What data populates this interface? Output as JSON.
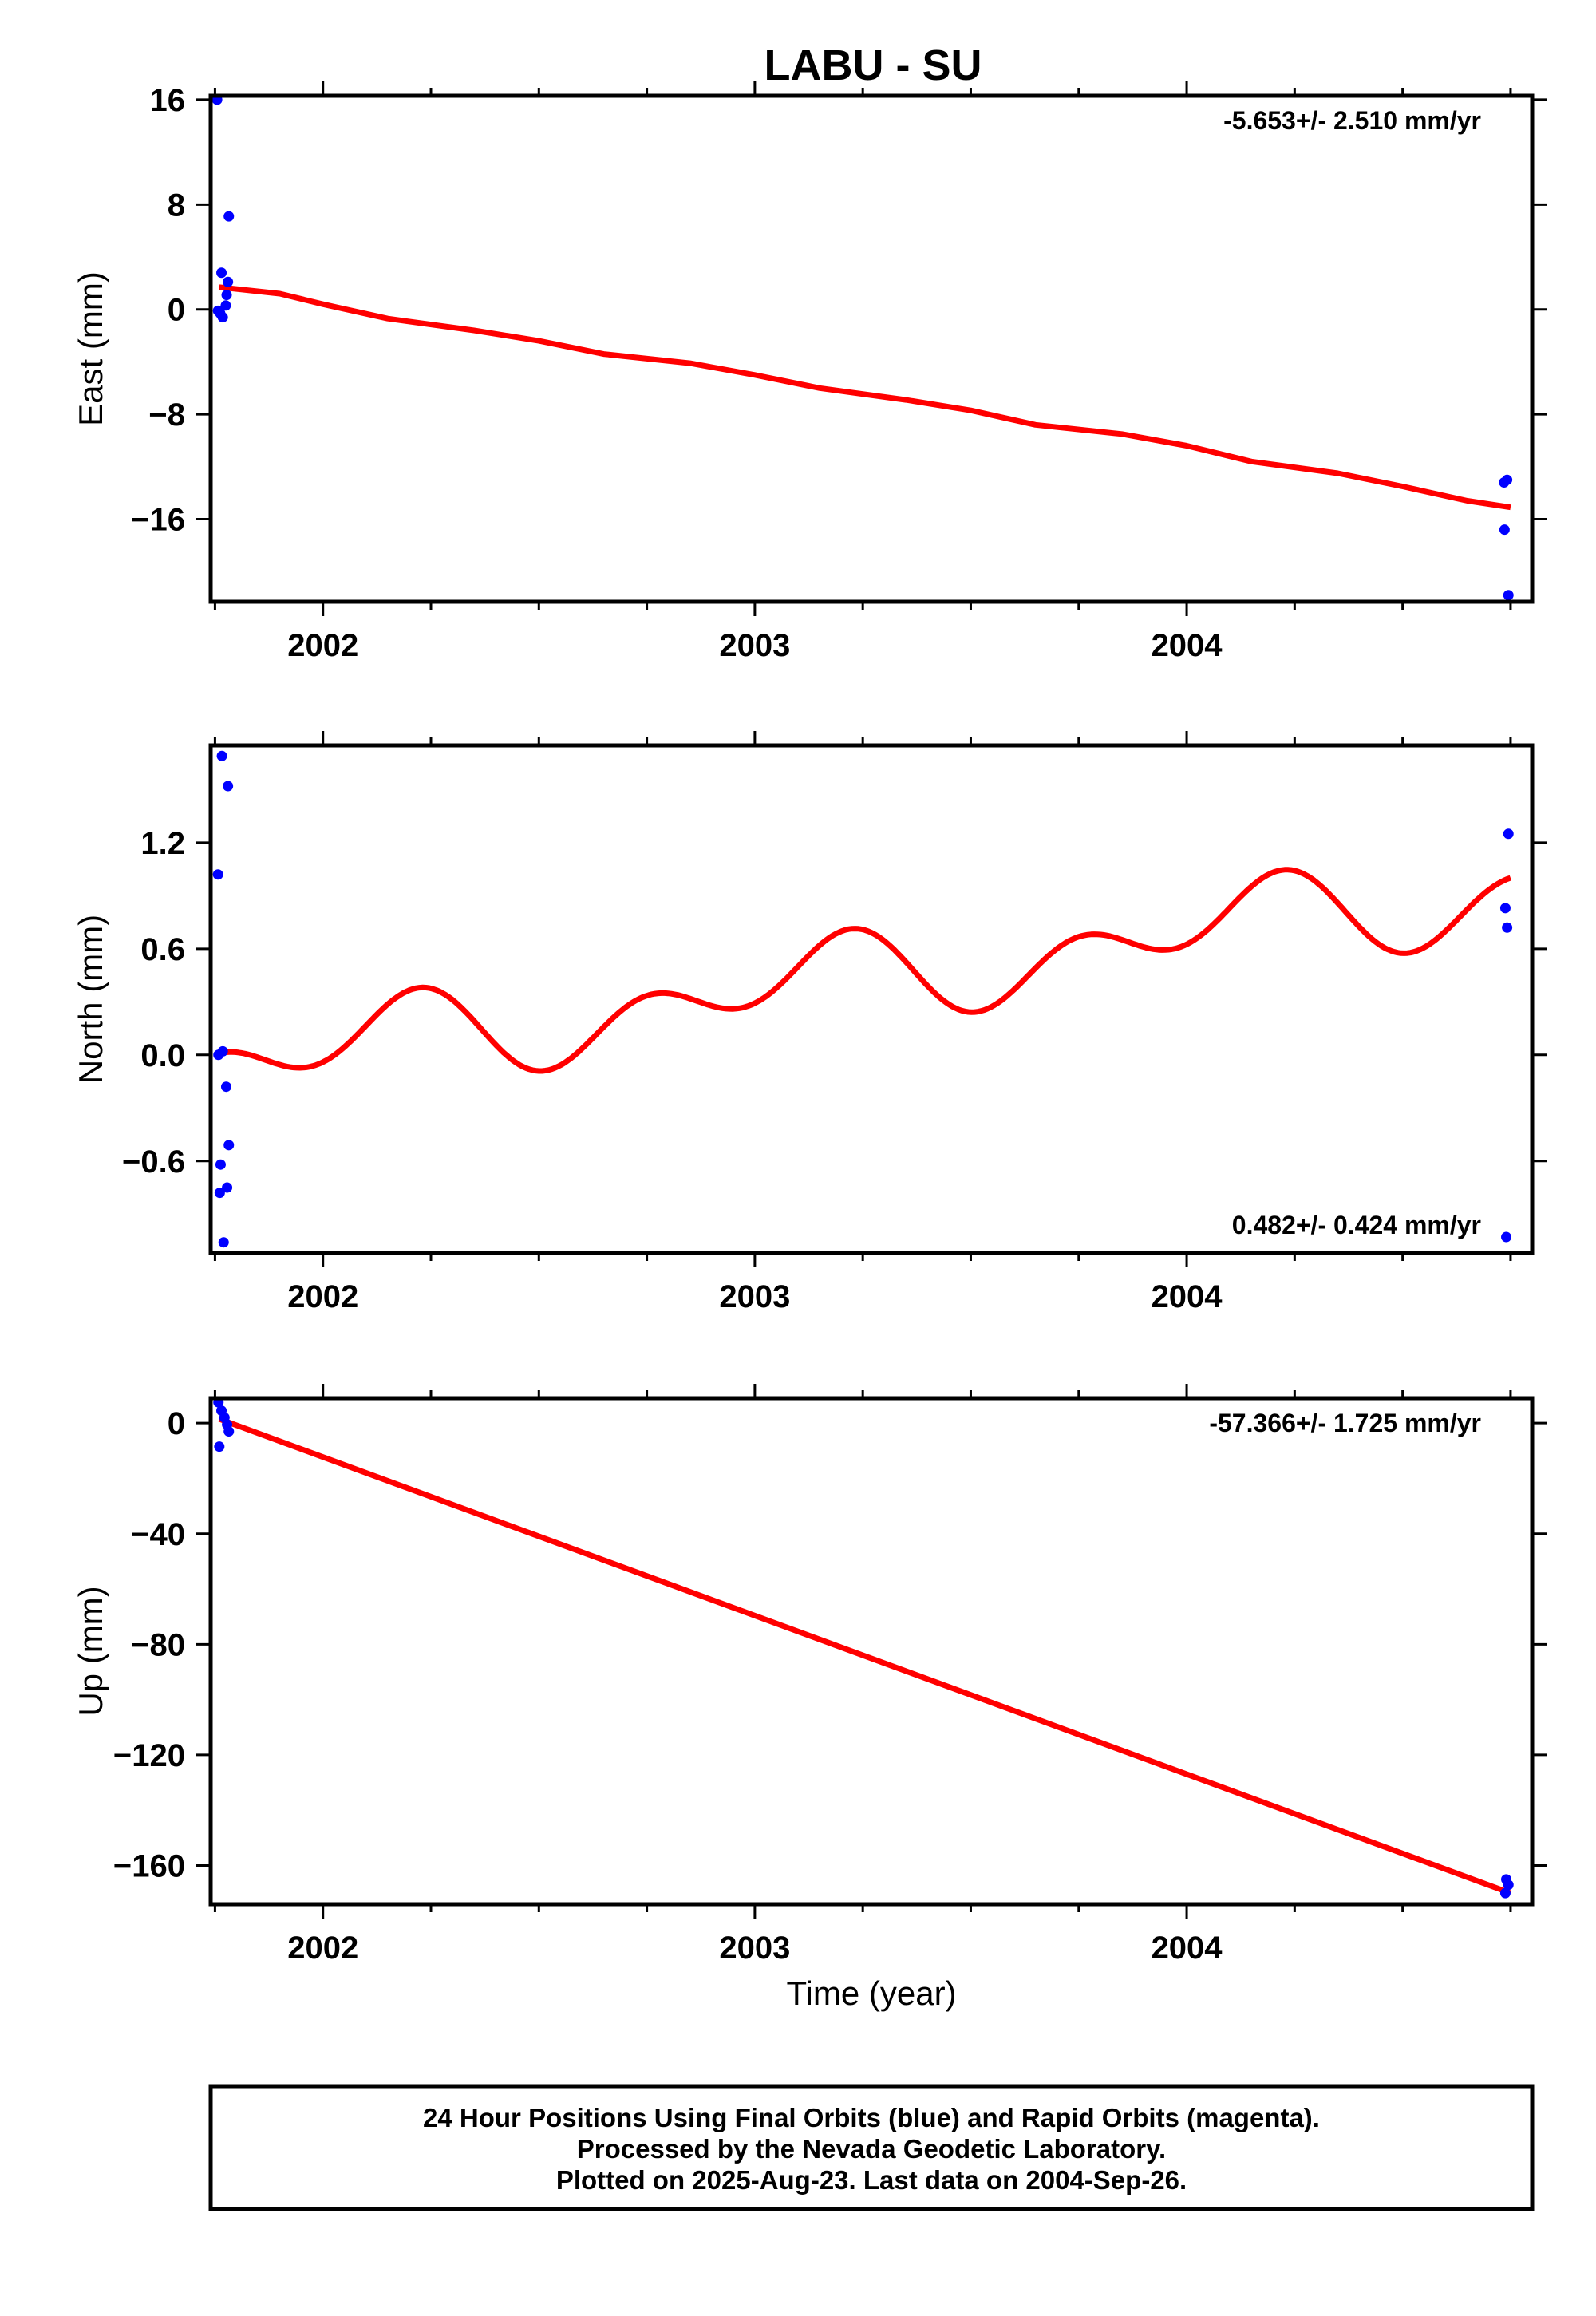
{
  "title": "LABU - SU",
  "footer": {
    "lines": [
      "24 Hour Positions Using Final Orbits (blue) and Rapid Orbits (magenta).",
      "Processed by the Nevada Geodetic Laboratory.",
      "Plotted on 2025-Aug-23. Last data on 2004-Sep-26."
    ]
  },
  "colors": {
    "data_points": "#0000ff",
    "fit_line": "#ff0000",
    "frame": "#000000"
  },
  "chart_data": [
    {
      "type": "scatter",
      "name": "east",
      "ylabel": "East (mm)",
      "xlabel": "",
      "rate": "-5.653+/- 2.510 mm/yr",
      "rate_position": "top-right",
      "xlim": [
        2001.74,
        2004.8
      ],
      "ylim": [
        -22.3,
        16.3
      ],
      "xticks": [
        2002,
        2003,
        2004
      ],
      "xtick_labels": [
        "2002",
        "2003",
        "2004"
      ],
      "yticks": [
        16,
        8,
        0,
        -8,
        -16
      ],
      "ytick_labels": [
        "16",
        "8",
        "0",
        "−8",
        "−16"
      ],
      "points": [
        {
          "x": 2001.755,
          "y": 16.0
        },
        {
          "x": 2001.782,
          "y": 7.1
        },
        {
          "x": 2001.765,
          "y": 2.8
        },
        {
          "x": 2001.78,
          "y": 2.1
        },
        {
          "x": 2001.777,
          "y": 1.1
        },
        {
          "x": 2001.775,
          "y": 0.3
        },
        {
          "x": 2001.757,
          "y": -0.1
        },
        {
          "x": 2001.762,
          "y": -0.3
        },
        {
          "x": 2001.768,
          "y": -0.6
        },
        {
          "x": 2004.735,
          "y": -13.2
        },
        {
          "x": 2004.742,
          "y": -13.0
        },
        {
          "x": 2004.736,
          "y": -16.8
        },
        {
          "x": 2004.745,
          "y": -21.8
        }
      ],
      "fit": [
        {
          "x": 2001.76,
          "y": 1.7
        },
        {
          "x": 2001.9,
          "y": 1.2
        },
        {
          "x": 2002.0,
          "y": 0.4
        },
        {
          "x": 2002.15,
          "y": -0.7
        },
        {
          "x": 2002.35,
          "y": -1.6
        },
        {
          "x": 2002.5,
          "y": -2.4
        },
        {
          "x": 2002.65,
          "y": -3.4
        },
        {
          "x": 2002.85,
          "y": -4.1
        },
        {
          "x": 2003.0,
          "y": -5.0
        },
        {
          "x": 2003.15,
          "y": -6.0
        },
        {
          "x": 2003.35,
          "y": -6.9
        },
        {
          "x": 2003.5,
          "y": -7.7
        },
        {
          "x": 2003.65,
          "y": -8.8
        },
        {
          "x": 2003.85,
          "y": -9.5
        },
        {
          "x": 2004.0,
          "y": -10.4
        },
        {
          "x": 2004.15,
          "y": -11.6
        },
        {
          "x": 2004.35,
          "y": -12.5
        },
        {
          "x": 2004.5,
          "y": -13.5
        },
        {
          "x": 2004.65,
          "y": -14.6
        },
        {
          "x": 2004.75,
          "y": -15.1
        }
      ]
    },
    {
      "type": "scatter",
      "name": "north",
      "ylabel": "North (mm)",
      "xlabel": "",
      "rate": "0.482+/- 0.424 mm/yr",
      "rate_position": "bottom-right",
      "xlim": [
        2001.74,
        2004.8
      ],
      "ylim": [
        -1.12,
        1.75
      ],
      "xticks": [
        2002,
        2003,
        2004
      ],
      "xtick_labels": [
        "2002",
        "2003",
        "2004"
      ],
      "yticks": [
        1.2,
        0.6,
        0.0,
        -0.6
      ],
      "ytick_labels": [
        "1.2",
        "0.6",
        "0.0",
        "−0.6"
      ],
      "points": [
        {
          "x": 2001.766,
          "y": 1.69
        },
        {
          "x": 2001.78,
          "y": 1.52
        },
        {
          "x": 2001.757,
          "y": 1.02
        },
        {
          "x": 2001.768,
          "y": 0.02
        },
        {
          "x": 2001.758,
          "y": 0.0
        },
        {
          "x": 2001.776,
          "y": -0.18
        },
        {
          "x": 2001.782,
          "y": -0.51
        },
        {
          "x": 2001.763,
          "y": -0.62
        },
        {
          "x": 2001.778,
          "y": -0.75
        },
        {
          "x": 2001.761,
          "y": -0.78
        },
        {
          "x": 2001.77,
          "y": -1.06
        },
        {
          "x": 2004.745,
          "y": 1.25
        },
        {
          "x": 2004.738,
          "y": 0.83
        },
        {
          "x": 2004.742,
          "y": 0.72
        },
        {
          "x": 2004.74,
          "y": -1.03
        }
      ],
      "fit_model": {
        "t0": 2001.76,
        "t1": 2004.75,
        "offset": -0.06,
        "trend": 0.333,
        "annual_amplitude": 0.15,
        "annual_phase": -0.7,
        "semiannual_amplitude": 0.17,
        "semiannual_phase": 1.8
      }
    },
    {
      "type": "scatter",
      "name": "up",
      "ylabel": "Up (mm)",
      "xlabel": "Time (year)",
      "rate": "-57.366+/- 1.725 mm/yr",
      "rate_position": "top-right",
      "xlim": [
        2001.74,
        2004.8
      ],
      "ylim": [
        -174,
        9
      ],
      "xticks": [
        2002,
        2003,
        2004
      ],
      "xtick_labels": [
        "2002",
        "2003",
        "2004"
      ],
      "yticks": [
        0,
        -40,
        -80,
        -120,
        -160
      ],
      "ytick_labels": [
        "0",
        "−40",
        "−80",
        "−120",
        "−160"
      ],
      "points": [
        {
          "x": 2001.758,
          "y": 7.5
        },
        {
          "x": 2001.765,
          "y": 4.5
        },
        {
          "x": 2001.772,
          "y": 2.0
        },
        {
          "x": 2001.778,
          "y": -0.5
        },
        {
          "x": 2001.782,
          "y": -3.0
        },
        {
          "x": 2001.76,
          "y": -8.5
        },
        {
          "x": 2004.74,
          "y": -165.0
        },
        {
          "x": 2004.745,
          "y": -167.0
        },
        {
          "x": 2004.738,
          "y": -170.0
        }
      ],
      "fit": [
        {
          "x": 2001.76,
          "y": 1.5
        },
        {
          "x": 2004.75,
          "y": -170.0
        }
      ]
    }
  ]
}
